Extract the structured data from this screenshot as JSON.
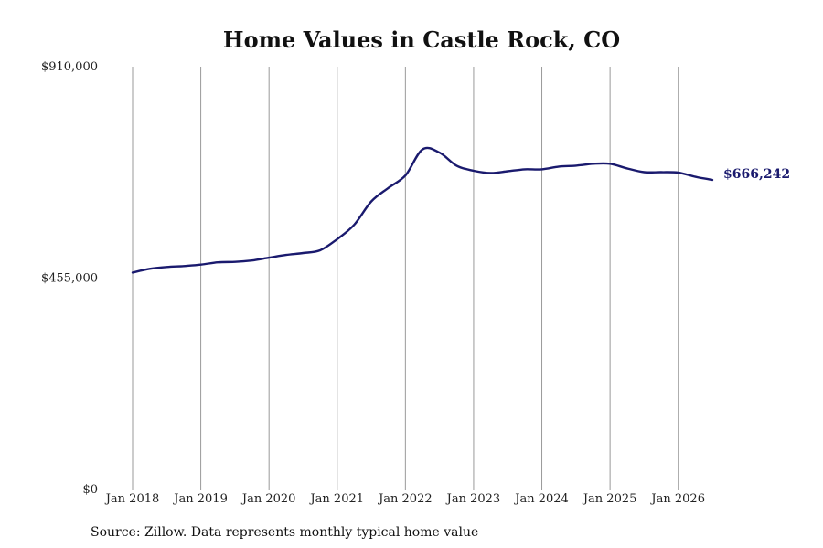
{
  "chart_data": {
    "type": "line",
    "title": "Home Values in Castle Rock, CO",
    "xlabel": "",
    "ylabel": "",
    "ylim": [
      0,
      910000
    ],
    "y_ticks": [
      0,
      455000,
      910000
    ],
    "y_tick_labels": [
      "$0",
      "$455,000",
      "$910,000"
    ],
    "x_ticks": [
      "Jan 2018",
      "Jan 2019",
      "Jan 2020",
      "Jan 2021",
      "Jan 2022",
      "Jan 2023",
      "Jan 2024",
      "Jan 2025",
      "Jan 2026"
    ],
    "xlim": [
      "2018-01",
      "2026-07"
    ],
    "grid": "vertical",
    "line_color": "#1a1a6e",
    "end_label": "$666,242",
    "series": [
      {
        "x": [
          "2018-01",
          "2018-04",
          "2018-07",
          "2018-10",
          "2019-01",
          "2019-04",
          "2019-07",
          "2019-10",
          "2020-01",
          "2020-04",
          "2020-07",
          "2020-10",
          "2021-01",
          "2021-04",
          "2021-07",
          "2021-10",
          "2022-01",
          "2022-04",
          "2022-07",
          "2022-10",
          "2023-01",
          "2023-04",
          "2023-07",
          "2023-10",
          "2024-01",
          "2024-04",
          "2024-07",
          "2024-10",
          "2025-01",
          "2025-04",
          "2025-07",
          "2025-10",
          "2026-01",
          "2026-04",
          "2026-07"
        ],
        "values": [
          467000,
          475000,
          479000,
          481000,
          484000,
          489000,
          490000,
          493000,
          499000,
          505000,
          509000,
          515000,
          539000,
          570000,
          620000,
          649000,
          676000,
          732000,
          725000,
          697000,
          686000,
          681000,
          685000,
          689000,
          689000,
          695000,
          697000,
          701000,
          701000,
          691000,
          683000,
          683000,
          682000,
          673000,
          666242
        ]
      }
    ]
  },
  "source": "Source: Zillow. Data represents monthly typical home value"
}
